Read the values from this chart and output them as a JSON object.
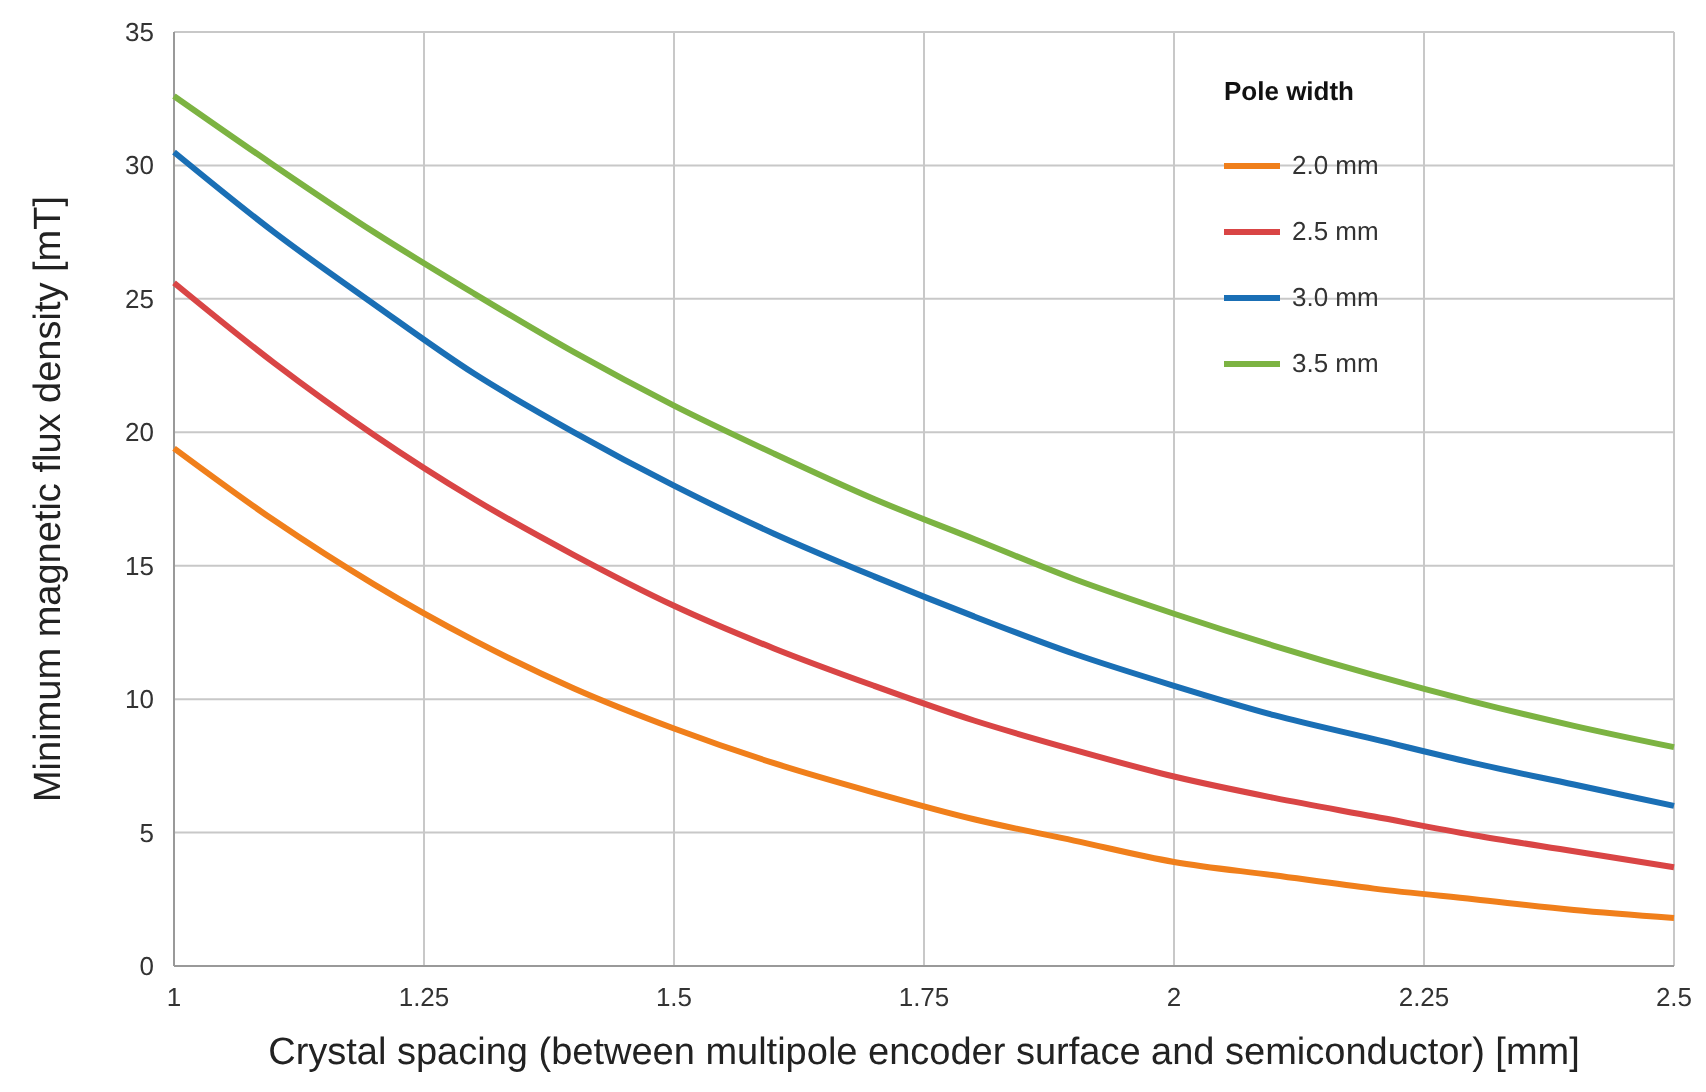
{
  "chart_data": {
    "type": "line",
    "xlabel": "Crystal spacing (between multipole encoder surface and semiconductor) [mm]",
    "ylabel": "Minimum magnetic flux density [mT]",
    "legend_title": "Pole width",
    "legend": "top right",
    "grid": true,
    "line_style": "solid",
    "marker": "none",
    "x": [
      1,
      1.1,
      1.2,
      1.3,
      1.4,
      1.5,
      1.6,
      1.7,
      1.8,
      1.9,
      2,
      2.1,
      2.2,
      2.3,
      2.4,
      2.5
    ],
    "xlim": [
      1,
      2.5
    ],
    "xticks": [
      1,
      1.25,
      1.5,
      1.75,
      2,
      2.25,
      2.5
    ],
    "ylim": [
      0,
      35
    ],
    "yticks": [
      0,
      5,
      10,
      15,
      20,
      25,
      30,
      35
    ],
    "series": [
      {
        "name": "2.0 mm",
        "color": "#f07f1b",
        "values": [
          19.4,
          16.7,
          14.3,
          12.2,
          10.4,
          8.9,
          7.6,
          6.5,
          5.5,
          4.7,
          3.9,
          3.4,
          2.9,
          2.5,
          2.1,
          1.8
        ]
      },
      {
        "name": "2.5 mm",
        "color": "#d94545",
        "values": [
          25.6,
          22.6,
          19.9,
          17.5,
          15.4,
          13.5,
          11.9,
          10.5,
          9.2,
          8.1,
          7.1,
          6.3,
          5.6,
          4.9,
          4.3,
          3.7
        ]
      },
      {
        "name": "3.0 mm",
        "color": "#1a6fb5",
        "values": [
          30.5,
          27.5,
          24.8,
          22.2,
          20,
          18,
          16.2,
          14.6,
          13.1,
          11.7,
          10.5,
          9.4,
          8.5,
          7.6,
          6.8,
          6
        ]
      },
      {
        "name": "3.5 mm",
        "color": "#7cb342",
        "values": [
          32.6,
          30,
          27.5,
          25.2,
          23,
          21,
          19.2,
          17.5,
          16,
          14.5,
          13.2,
          12,
          10.9,
          9.9,
          9,
          8.2
        ]
      }
    ]
  }
}
